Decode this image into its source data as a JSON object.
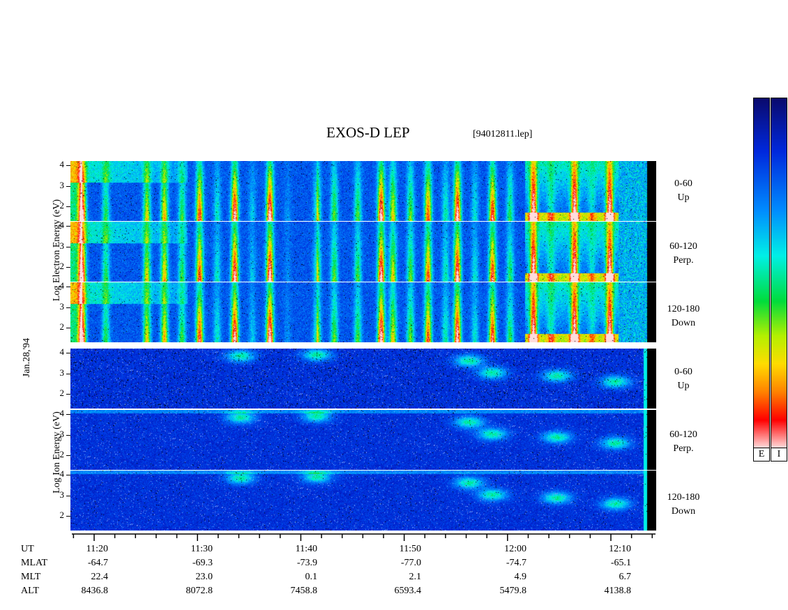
{
  "header": {
    "title": "EXOS-D LEP",
    "file_id": "[94012811.lep]"
  },
  "date_label": "Jan.28,'94",
  "electron": {
    "axis_label": "Log  Electron  Energy  (eV)",
    "panels": [
      {
        "range": "0-60",
        "dir": "Up"
      },
      {
        "range": "60-120",
        "dir": "Perp."
      },
      {
        "range": "120-180",
        "dir": "Down"
      }
    ]
  },
  "ion": {
    "axis_label": "Log  Ion  Energy  (eV)",
    "panels": [
      {
        "range": "0-60",
        "dir": "Up"
      },
      {
        "range": "60-120",
        "dir": "Perp."
      },
      {
        "range": "120-180",
        "dir": "Down"
      }
    ]
  },
  "y_ticks": [
    "4",
    "3",
    "2"
  ],
  "colorbar": {
    "labels": [
      "E",
      "I"
    ]
  },
  "table": {
    "rows": [
      {
        "name": "UT",
        "values": [
          "11:20",
          "11:30",
          "11:40",
          "11:50",
          "12:00",
          "12:10"
        ]
      },
      {
        "name": "MLAT",
        "values": [
          "-64.7",
          "-69.3",
          "-73.9",
          "-77.0",
          "-74.7",
          "-65.1"
        ]
      },
      {
        "name": "MLT",
        "values": [
          "22.4",
          "23.0",
          "0.1",
          "2.1",
          "4.9",
          "6.7"
        ]
      },
      {
        "name": "ALT",
        "values": [
          "8436.8",
          "8072.8",
          "7458.8",
          "6593.4",
          "5479.8",
          "4138.8"
        ]
      }
    ]
  },
  "chart_data": {
    "type": "heatmap",
    "title": "EXOS-D LEP",
    "x_ticks": [
      "11:20",
      "11:30",
      "11:40",
      "11:50",
      "12:00",
      "12:10"
    ],
    "y_ticks": [
      2,
      3,
      4
    ],
    "ylim": [
      1.3,
      4.2
    ],
    "panels": [
      {
        "species": "Electron",
        "pitch": "0-60",
        "label": "Up"
      },
      {
        "species": "Electron",
        "pitch": "60-120",
        "label": "Perp."
      },
      {
        "species": "Electron",
        "pitch": "120-180",
        "label": "Down"
      },
      {
        "species": "Ion",
        "pitch": "0-60",
        "label": "Up"
      },
      {
        "species": "Ion",
        "pitch": "60-120",
        "label": "Perp."
      },
      {
        "species": "Ion",
        "pitch": "120-180",
        "label": "Down"
      }
    ]
  }
}
